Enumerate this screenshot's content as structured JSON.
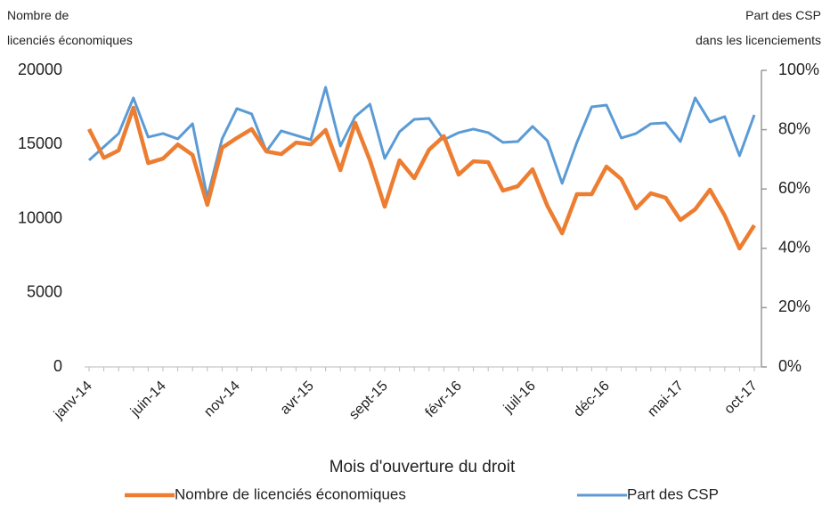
{
  "chart_data": {
    "type": "line",
    "x_label": "Mois d'ouverture du droit",
    "y_label": [
      "Nombre de",
      "licenciés économiques"
    ],
    "y2_label": [
      "Part des CSP",
      "dans les licenciements"
    ],
    "categories": [
      "janv-14",
      null,
      null,
      null,
      null,
      "juin-14",
      null,
      null,
      null,
      null,
      "nov-14",
      null,
      null,
      null,
      null,
      "avr-15",
      null,
      null,
      null,
      null,
      "sept-15",
      null,
      null,
      null,
      null,
      "févr-16",
      null,
      null,
      null,
      null,
      "juil-16",
      null,
      null,
      null,
      null,
      "déc-16",
      null,
      null,
      null,
      null,
      "mai-17",
      null,
      null,
      null,
      null,
      "oct-17"
    ],
    "ylim": [
      0,
      20000
    ],
    "yticks": [
      0,
      5000,
      10000,
      15000,
      20000
    ],
    "y2lim": [
      0,
      100
    ],
    "y2ticks": [
      {
        "value": 0,
        "label": "0%"
      },
      {
        "value": 20,
        "label": "20%"
      },
      {
        "value": 40,
        "label": "40%"
      },
      {
        "value": 60,
        "label": "60%"
      },
      {
        "value": 80,
        "label": "80%"
      },
      {
        "value": 100,
        "label": "100%"
      }
    ],
    "grid": false,
    "legend": "bottom",
    "series": [
      {
        "name": "Nombre de licenciés économiques",
        "color": "#ED7D31",
        "values": [
          16040,
          14100,
          14600,
          17480,
          13750,
          14050,
          15000,
          14300,
          10930,
          14780,
          15440,
          16040,
          14530,
          14350,
          15130,
          15010,
          15980,
          13270,
          16460,
          13930,
          10810,
          13930,
          12730,
          14650,
          15560,
          12970,
          13870,
          13810,
          11890,
          12190,
          13330,
          10870,
          9010,
          11650,
          11650,
          13510,
          12670,
          10690,
          11710,
          11410,
          9910,
          10630,
          11950,
          10210,
          7990,
          9550
        ]
      },
      {
        "name": "Part des CSP",
        "color": "#5B9BD5",
        "axis": "y2",
        "values": [
          69.7,
          74.2,
          78.7,
          90.7,
          77.5,
          78.7,
          76.9,
          82,
          57.1,
          76.9,
          87.1,
          85.3,
          72.7,
          79.6,
          78.1,
          76.6,
          94.3,
          74.5,
          84.4,
          88.6,
          70.3,
          79.3,
          83.5,
          83.8,
          76.6,
          79,
          80.2,
          79,
          75.7,
          76,
          81.1,
          76.3,
          61.9,
          75.7,
          87.7,
          88.3,
          77.2,
          78.7,
          82,
          82.3,
          76,
          90.7,
          82.6,
          84.4,
          71.2,
          85
        ]
      }
    ]
  }
}
